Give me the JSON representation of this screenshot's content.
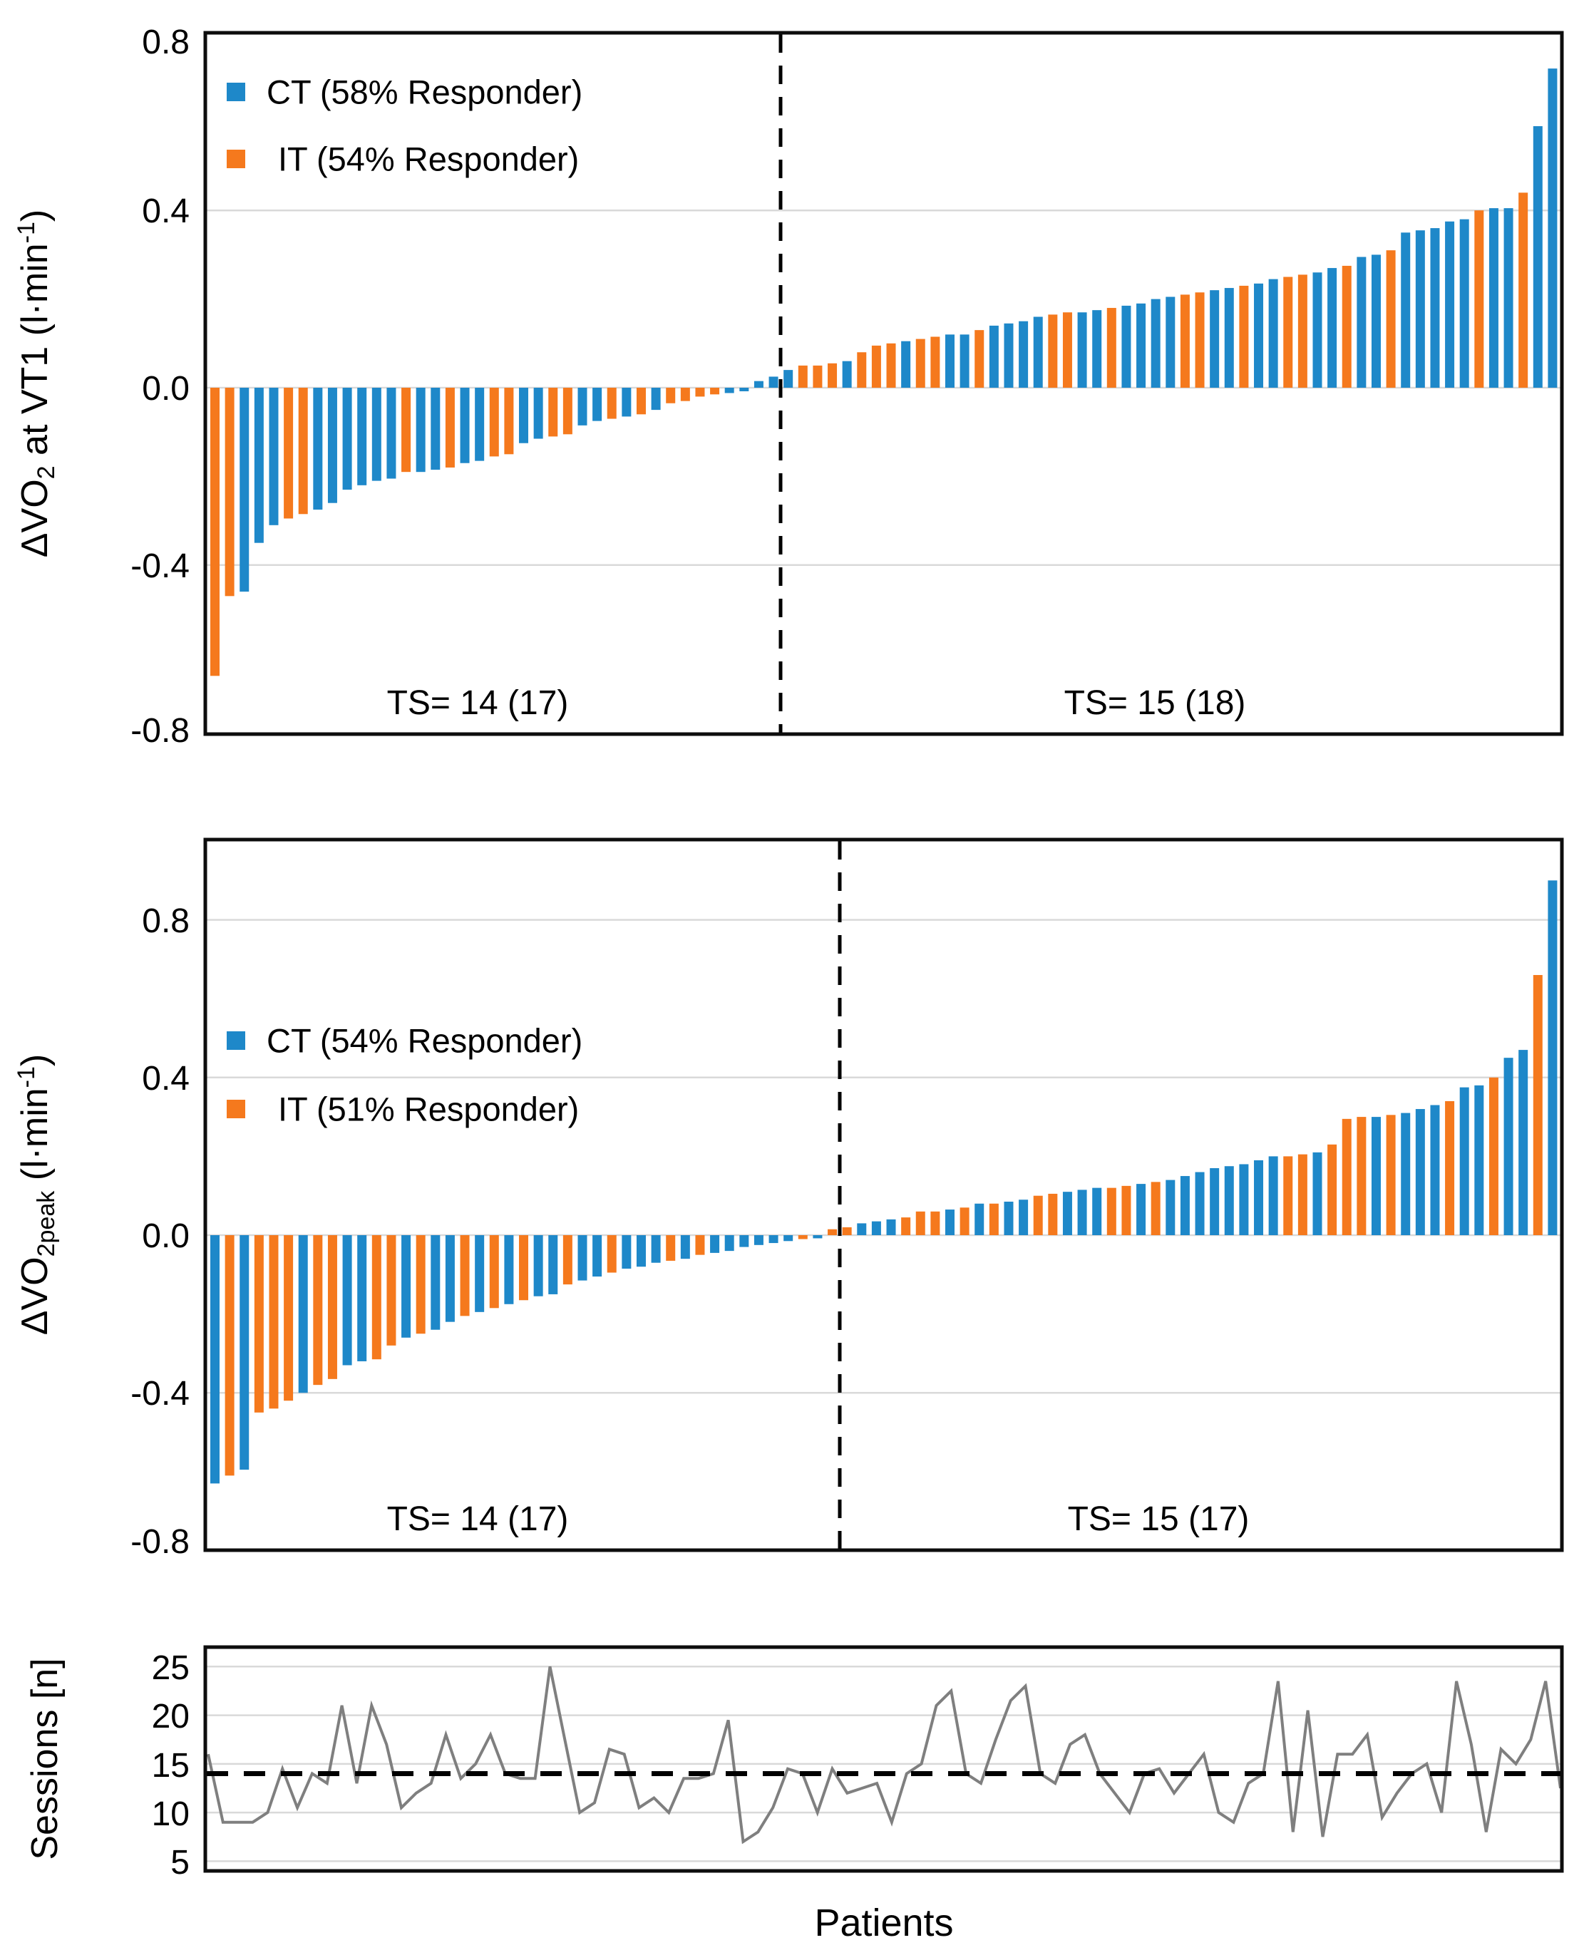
{
  "colors": {
    "ct": "#1E88C9",
    "it": "#F5791D",
    "line": "#7F7F7F",
    "grid": "#D9D9D9",
    "frame": "#0D0D0D",
    "divider": "#000000"
  },
  "chart_data": [
    {
      "type": "bar",
      "id": "delta-vo2-vt1-waterfall",
      "ylabel_text": "ΔVO2 at VT1 (l·min-1)",
      "ylabel_parts": {
        "pre": "ΔVO",
        "sub": "2",
        "mid": " at VT1 (l·min",
        "sup": "-1",
        "end": ")"
      },
      "yticks": [
        "0.8",
        "0.4",
        "0.0",
        "-0.4",
        "-0.8"
      ],
      "ylim": [
        -0.8,
        0.8
      ],
      "gridline_values": [
        0.4,
        0,
        -0.4
      ],
      "legend_position": "top-left",
      "legend": [
        {
          "series": "CT",
          "label": "CT (58% Responder)"
        },
        {
          "series": "IT",
          "label": "IT (54% Responder)"
        }
      ],
      "annotations": {
        "left": "TS= 14 (17)",
        "right": "TS= 15 (18)"
      },
      "divider_after_index": 39,
      "bars": [
        [
          "IT",
          -0.65
        ],
        [
          "IT",
          -0.47
        ],
        [
          "CT",
          -0.46
        ],
        [
          "CT",
          -0.35
        ],
        [
          "CT",
          -0.31
        ],
        [
          "IT",
          -0.295
        ],
        [
          "IT",
          -0.285
        ],
        [
          "CT",
          -0.275
        ],
        [
          "CT",
          -0.26
        ],
        [
          "CT",
          -0.23
        ],
        [
          "CT",
          -0.22
        ],
        [
          "CT",
          -0.21
        ],
        [
          "CT",
          -0.205
        ],
        [
          "IT",
          -0.19
        ],
        [
          "CT",
          -0.19
        ],
        [
          "CT",
          -0.185
        ],
        [
          "IT",
          -0.18
        ],
        [
          "CT",
          -0.17
        ],
        [
          "CT",
          -0.165
        ],
        [
          "IT",
          -0.155
        ],
        [
          "IT",
          -0.15
        ],
        [
          "CT",
          -0.125
        ],
        [
          "CT",
          -0.115
        ],
        [
          "IT",
          -0.11
        ],
        [
          "IT",
          -0.105
        ],
        [
          "CT",
          -0.085
        ],
        [
          "CT",
          -0.075
        ],
        [
          "IT",
          -0.07
        ],
        [
          "CT",
          -0.065
        ],
        [
          "IT",
          -0.06
        ],
        [
          "CT",
          -0.05
        ],
        [
          "IT",
          -0.035
        ],
        [
          "IT",
          -0.03
        ],
        [
          "IT",
          -0.02
        ],
        [
          "IT",
          -0.015
        ],
        [
          "CT",
          -0.012
        ],
        [
          "CT",
          -0.008
        ],
        [
          "CT",
          0.015
        ],
        [
          "CT",
          0.025
        ],
        [
          "CT",
          0.04
        ],
        [
          "IT",
          0.05
        ],
        [
          "IT",
          0.05
        ],
        [
          "IT",
          0.055
        ],
        [
          "CT",
          0.06
        ],
        [
          "IT",
          0.08
        ],
        [
          "IT",
          0.095
        ],
        [
          "IT",
          0.1
        ],
        [
          "CT",
          0.105
        ],
        [
          "IT",
          0.11
        ],
        [
          "IT",
          0.115
        ],
        [
          "CT",
          0.12
        ],
        [
          "CT",
          0.12
        ],
        [
          "IT",
          0.13
        ],
        [
          "CT",
          0.14
        ],
        [
          "CT",
          0.145
        ],
        [
          "CT",
          0.15
        ],
        [
          "CT",
          0.16
        ],
        [
          "IT",
          0.165
        ],
        [
          "IT",
          0.17
        ],
        [
          "CT",
          0.17
        ],
        [
          "CT",
          0.175
        ],
        [
          "IT",
          0.18
        ],
        [
          "CT",
          0.185
        ],
        [
          "CT",
          0.19
        ],
        [
          "CT",
          0.2
        ],
        [
          "CT",
          0.205
        ],
        [
          "IT",
          0.21
        ],
        [
          "IT",
          0.215
        ],
        [
          "CT",
          0.22
        ],
        [
          "CT",
          0.225
        ],
        [
          "IT",
          0.23
        ],
        [
          "CT",
          0.235
        ],
        [
          "CT",
          0.245
        ],
        [
          "IT",
          0.25
        ],
        [
          "IT",
          0.255
        ],
        [
          "CT",
          0.26
        ],
        [
          "CT",
          0.27
        ],
        [
          "IT",
          0.275
        ],
        [
          "CT",
          0.295
        ],
        [
          "CT",
          0.3
        ],
        [
          "IT",
          0.31
        ],
        [
          "CT",
          0.35
        ],
        [
          "CT",
          0.355
        ],
        [
          "CT",
          0.36
        ],
        [
          "CT",
          0.375
        ],
        [
          "CT",
          0.38
        ],
        [
          "IT",
          0.4
        ],
        [
          "CT",
          0.405
        ],
        [
          "CT",
          0.405
        ],
        [
          "IT",
          0.44
        ],
        [
          "CT",
          0.59
        ],
        [
          "CT",
          0.72
        ]
      ]
    },
    {
      "type": "bar",
      "id": "delta-vo2peak-waterfall",
      "ylabel_text": "ΔVO2peak (l·min-1)",
      "ylabel_parts": {
        "pre": "ΔVO",
        "sub": "2peak",
        "mid": " (l·min",
        "sup": "-1",
        "end": ")"
      },
      "yticks": [
        "0.8",
        "0.4",
        "0.0",
        "-0.4",
        "-0.8"
      ],
      "ylim": [
        -0.8,
        1.0
      ],
      "gridline_values": [
        0.8,
        0.4,
        0,
        -0.4
      ],
      "legend_position": "upper-left",
      "legend": [
        {
          "series": "CT",
          "label": "CT (54% Responder)"
        },
        {
          "series": "IT",
          "label": "IT (51% Responder)"
        }
      ],
      "annotations": {
        "left": "TS= 14 (17)",
        "right": "TS= 15 (17)"
      },
      "divider_after_index": 43,
      "bars": [
        [
          "CT",
          -0.63
        ],
        [
          "IT",
          -0.61
        ],
        [
          "CT",
          -0.595
        ],
        [
          "IT",
          -0.45
        ],
        [
          "IT",
          -0.44
        ],
        [
          "IT",
          -0.42
        ],
        [
          "CT",
          -0.4
        ],
        [
          "IT",
          -0.38
        ],
        [
          "IT",
          -0.365
        ],
        [
          "CT",
          -0.33
        ],
        [
          "CT",
          -0.32
        ],
        [
          "IT",
          -0.315
        ],
        [
          "IT",
          -0.28
        ],
        [
          "CT",
          -0.26
        ],
        [
          "IT",
          -0.25
        ],
        [
          "CT",
          -0.24
        ],
        [
          "CT",
          -0.22
        ],
        [
          "IT",
          -0.205
        ],
        [
          "CT",
          -0.195
        ],
        [
          "IT",
          -0.185
        ],
        [
          "CT",
          -0.175
        ],
        [
          "IT",
          -0.165
        ],
        [
          "CT",
          -0.155
        ],
        [
          "CT",
          -0.15
        ],
        [
          "IT",
          -0.125
        ],
        [
          "CT",
          -0.115
        ],
        [
          "CT",
          -0.105
        ],
        [
          "IT",
          -0.095
        ],
        [
          "CT",
          -0.085
        ],
        [
          "CT",
          -0.08
        ],
        [
          "CT",
          -0.07
        ],
        [
          "IT",
          -0.065
        ],
        [
          "CT",
          -0.06
        ],
        [
          "IT",
          -0.05
        ],
        [
          "CT",
          -0.045
        ],
        [
          "CT",
          -0.04
        ],
        [
          "CT",
          -0.03
        ],
        [
          "CT",
          -0.025
        ],
        [
          "CT",
          -0.02
        ],
        [
          "CT",
          -0.015
        ],
        [
          "IT",
          -0.01
        ],
        [
          "CT",
          -0.008
        ],
        [
          "IT",
          0.015
        ],
        [
          "IT",
          0.02
        ],
        [
          "CT",
          0.03
        ],
        [
          "CT",
          0.035
        ],
        [
          "CT",
          0.04
        ],
        [
          "IT",
          0.045
        ],
        [
          "IT",
          0.06
        ],
        [
          "IT",
          0.06
        ],
        [
          "CT",
          0.065
        ],
        [
          "IT",
          0.07
        ],
        [
          "CT",
          0.08
        ],
        [
          "IT",
          0.08
        ],
        [
          "CT",
          0.085
        ],
        [
          "CT",
          0.09
        ],
        [
          "IT",
          0.1
        ],
        [
          "IT",
          0.105
        ],
        [
          "CT",
          0.11
        ],
        [
          "CT",
          0.115
        ],
        [
          "CT",
          0.12
        ],
        [
          "IT",
          0.12
        ],
        [
          "IT",
          0.125
        ],
        [
          "CT",
          0.13
        ],
        [
          "IT",
          0.135
        ],
        [
          "CT",
          0.14
        ],
        [
          "CT",
          0.15
        ],
        [
          "CT",
          0.16
        ],
        [
          "CT",
          0.17
        ],
        [
          "CT",
          0.175
        ],
        [
          "CT",
          0.18
        ],
        [
          "CT",
          0.19
        ],
        [
          "CT",
          0.2
        ],
        [
          "IT",
          0.2
        ],
        [
          "IT",
          0.205
        ],
        [
          "CT",
          0.21
        ],
        [
          "IT",
          0.23
        ],
        [
          "IT",
          0.295
        ],
        [
          "IT",
          0.3
        ],
        [
          "CT",
          0.3
        ],
        [
          "IT",
          0.305
        ],
        [
          "CT",
          0.31
        ],
        [
          "CT",
          0.32
        ],
        [
          "CT",
          0.33
        ],
        [
          "IT",
          0.34
        ],
        [
          "CT",
          0.375
        ],
        [
          "CT",
          0.38
        ],
        [
          "IT",
          0.4
        ],
        [
          "CT",
          0.45
        ],
        [
          "CT",
          0.47
        ],
        [
          "IT",
          0.66
        ],
        [
          "CT",
          0.9
        ]
      ]
    },
    {
      "type": "line",
      "id": "sessions-per-patient",
      "ylabel": "Sessions [n]",
      "xlabel": "Patients",
      "yticks": [
        "25",
        "20",
        "15",
        "10",
        "5"
      ],
      "ylim": [
        5,
        25
      ],
      "gridline_values": [
        25,
        20,
        15,
        10,
        5
      ],
      "reference_line": 14,
      "values": [
        16,
        9,
        9,
        9,
        10,
        14.5,
        10.5,
        14,
        13,
        21,
        13,
        21,
        17,
        10.5,
        12,
        13,
        18,
        13.5,
        15,
        18,
        14,
        13.5,
        13.5,
        25,
        17.5,
        10,
        11,
        16.5,
        16,
        10.5,
        11.5,
        10,
        13.5,
        13.5,
        14,
        19.5,
        7,
        8,
        10.5,
        14.5,
        14,
        10,
        14.5,
        12,
        12.5,
        13,
        9,
        14,
        15,
        21,
        22.5,
        14,
        13,
        17.5,
        21.5,
        23,
        14,
        13,
        17,
        18,
        14,
        12,
        10,
        14,
        14.5,
        12,
        14,
        16,
        10,
        9,
        13,
        14,
        23.5,
        8,
        20.5,
        7.5,
        16,
        16,
        18,
        9.5,
        12,
        14,
        15,
        10,
        23.5,
        17,
        8,
        16.5,
        15,
        17.5,
        23.5,
        12.5
      ]
    }
  ]
}
